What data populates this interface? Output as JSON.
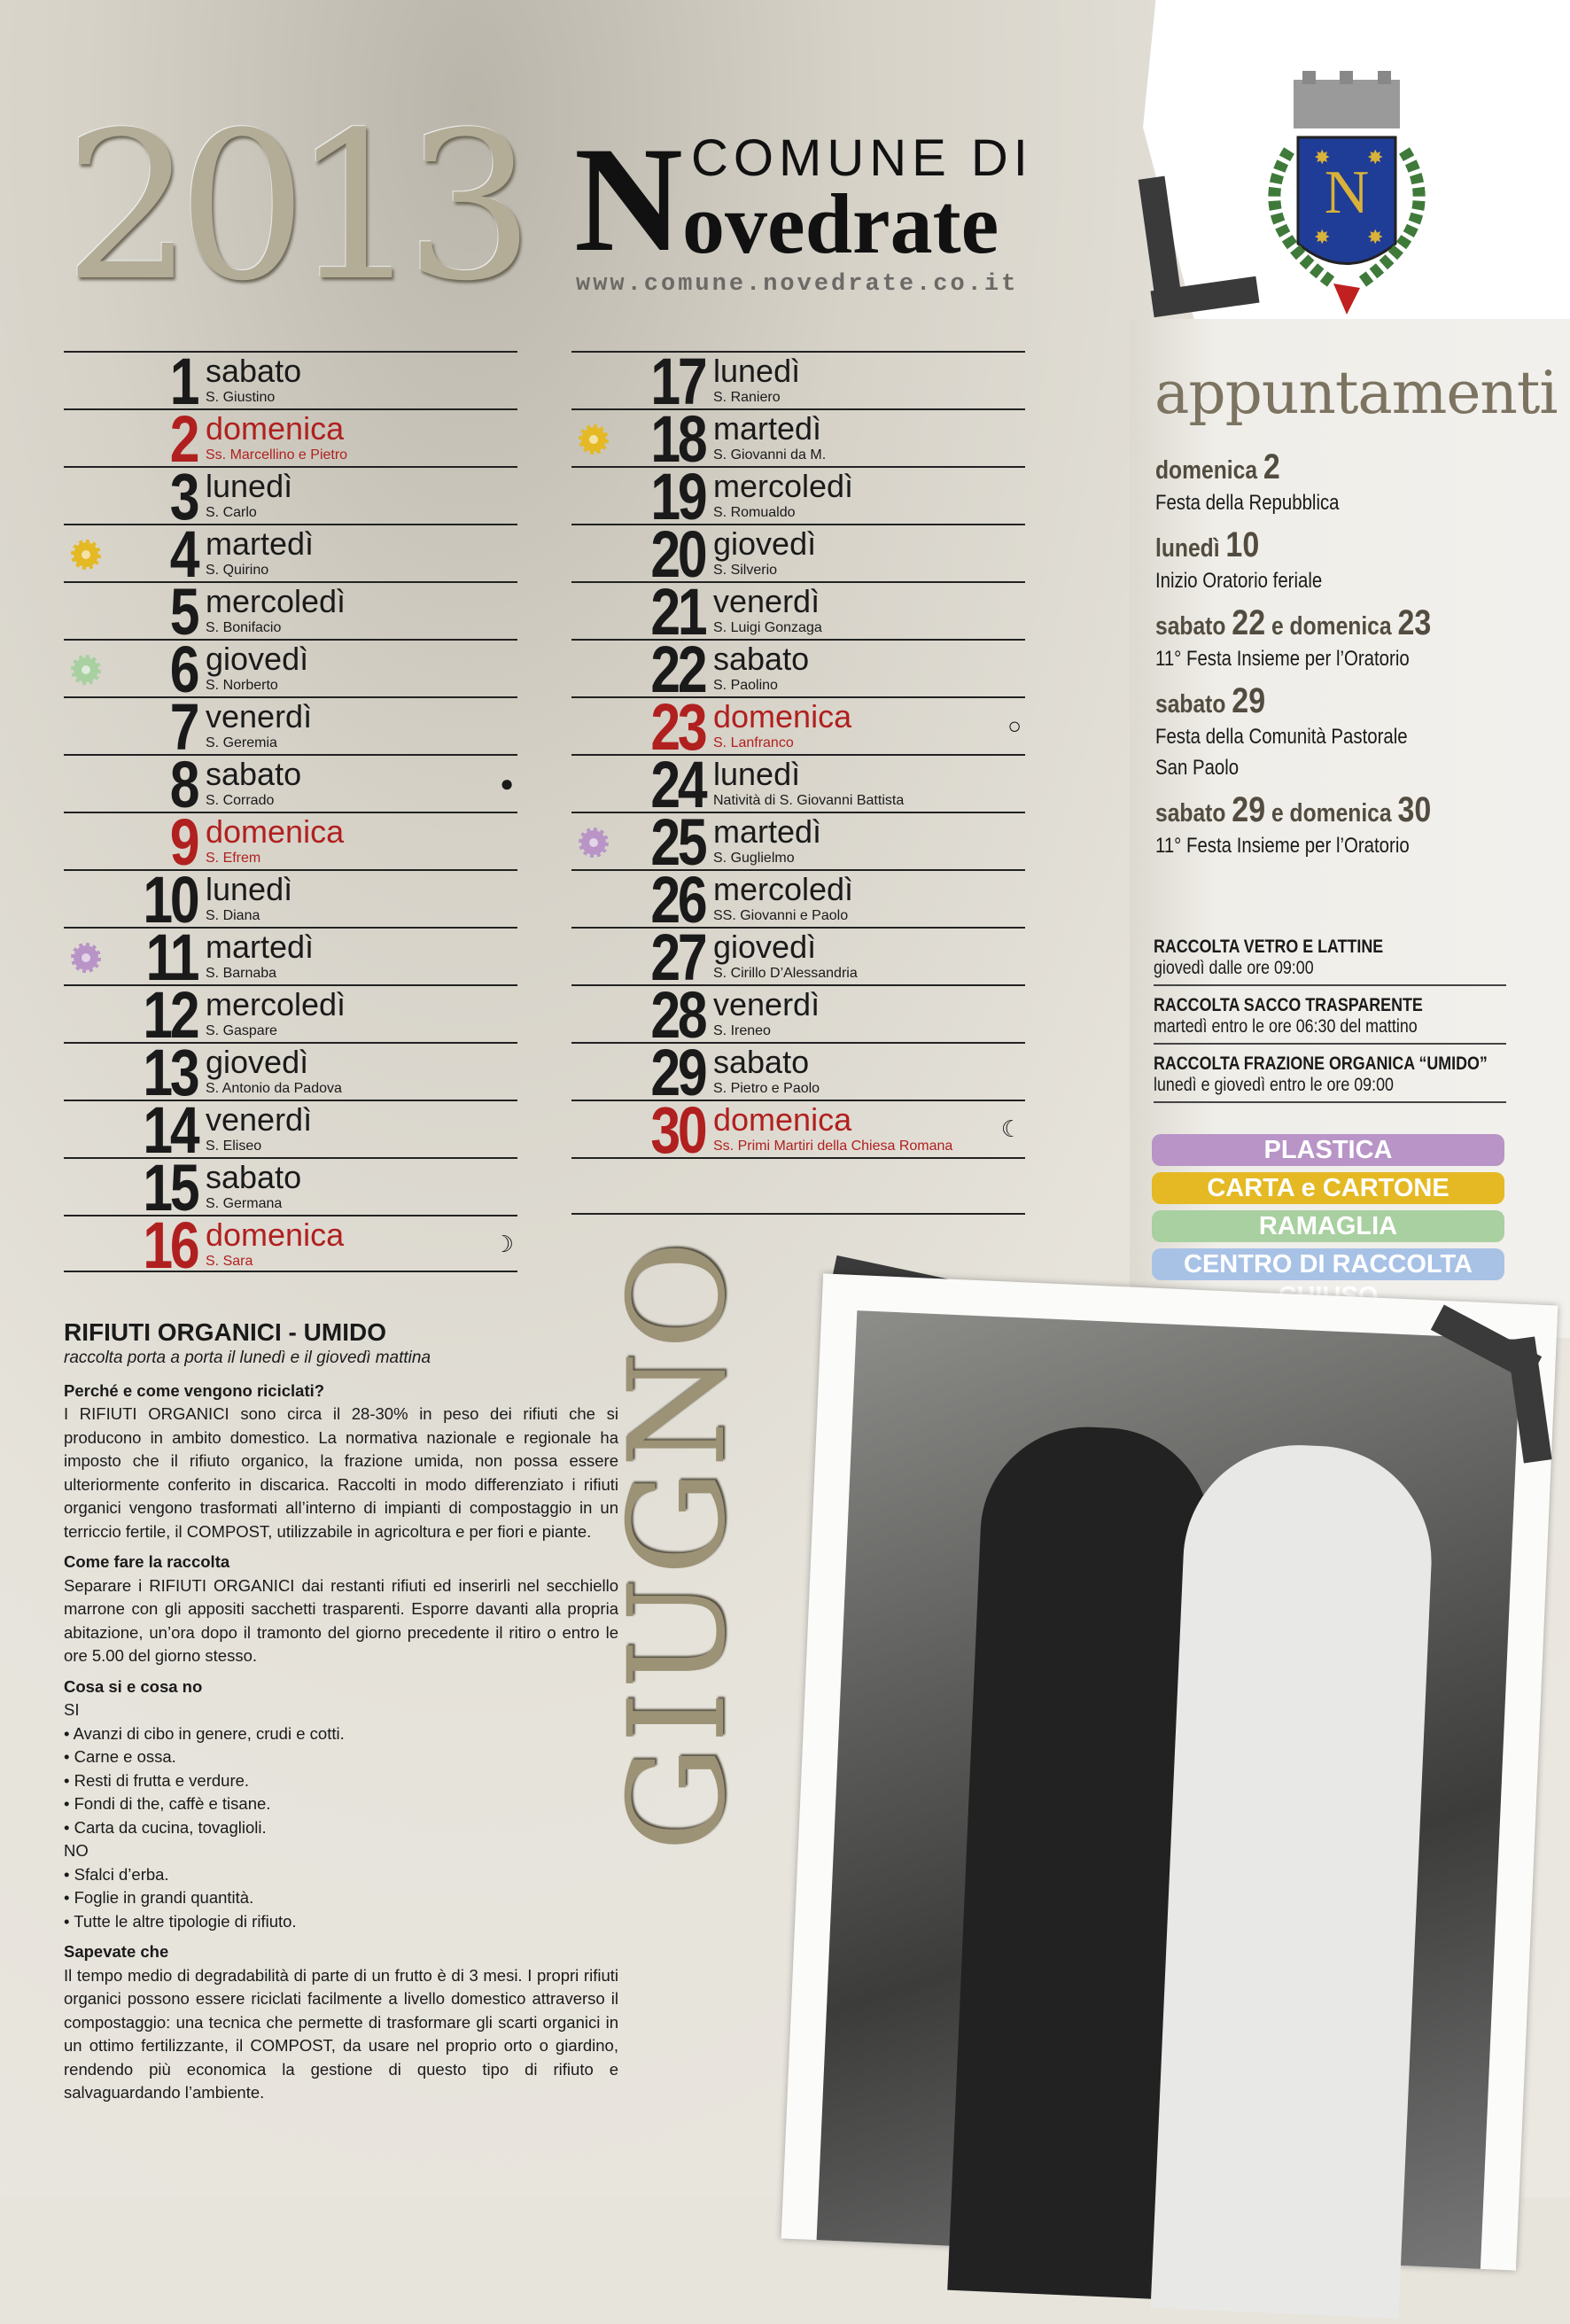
{
  "year": "2013",
  "header": {
    "n": "N",
    "comune": "COMUNE DI",
    "name": "ovedrate",
    "url": "www.comune.novedrate.co.it",
    "crest_letter": "N"
  },
  "month": "GIUGNO",
  "colors": {
    "plastica": "#b894c7",
    "carta": "#e4b923",
    "ramaglia": "#a8d0a0",
    "centro": "#a8c2e6",
    "sunday": "#b0201f"
  },
  "days_left": [
    {
      "n": "1",
      "d": "sabato",
      "s": "S. Giustino"
    },
    {
      "n": "2",
      "d": "domenica",
      "s": "Ss. Marcellino e Pietro",
      "sun": true
    },
    {
      "n": "3",
      "d": "lunedì",
      "s": "S. Carlo"
    },
    {
      "n": "4",
      "d": "martedì",
      "s": "S. Quirino",
      "flower": "carta"
    },
    {
      "n": "5",
      "d": "mercoledì",
      "s": "S. Bonifacio"
    },
    {
      "n": "6",
      "d": "giovedì",
      "s": "S. Norberto",
      "flower": "ramaglia"
    },
    {
      "n": "7",
      "d": "venerdì",
      "s": "S. Geremia"
    },
    {
      "n": "8",
      "d": "sabato",
      "s": "S. Corrado",
      "moon": "new-moon"
    },
    {
      "n": "9",
      "d": "domenica",
      "s": "S. Efrem",
      "sun": true
    },
    {
      "n": "10",
      "d": "lunedì",
      "s": "S. Diana"
    },
    {
      "n": "11",
      "d": "martedì",
      "s": "S. Barnaba",
      "flower": "plastica"
    },
    {
      "n": "12",
      "d": "mercoledì",
      "s": "S. Gaspare"
    },
    {
      "n": "13",
      "d": "giovedì",
      "s": "S. Antonio da Padova"
    },
    {
      "n": "14",
      "d": "venerdì",
      "s": "S. Eliseo"
    },
    {
      "n": "15",
      "d": "sabato",
      "s": "S. Germana"
    },
    {
      "n": "16",
      "d": "domenica",
      "s": "S. Sara",
      "sun": true,
      "moon": "first-quarter"
    }
  ],
  "days_right": [
    {
      "n": "17",
      "d": "lunedì",
      "s": "S. Raniero"
    },
    {
      "n": "18",
      "d": "martedì",
      "s": "S. Giovanni da M.",
      "flower": "carta"
    },
    {
      "n": "19",
      "d": "mercoledì",
      "s": "S. Romualdo"
    },
    {
      "n": "20",
      "d": "giovedì",
      "s": "S. Silverio"
    },
    {
      "n": "21",
      "d": "venerdì",
      "s": "S. Luigi Gonzaga"
    },
    {
      "n": "22",
      "d": "sabato",
      "s": "S. Paolino"
    },
    {
      "n": "23",
      "d": "domenica",
      "s": "S. Lanfranco",
      "sun": true,
      "moon": "full-moon"
    },
    {
      "n": "24",
      "d": "lunedì",
      "s": "Natività di S. Giovanni Battista"
    },
    {
      "n": "25",
      "d": "martedì",
      "s": "S. Guglielmo",
      "flower": "plastica"
    },
    {
      "n": "26",
      "d": "mercoledì",
      "s": "SS. Giovanni e Paolo"
    },
    {
      "n": "27",
      "d": "giovedì",
      "s": "S. Cirillo D’Alessandria"
    },
    {
      "n": "28",
      "d": "venerdì",
      "s": "S. Ireneo"
    },
    {
      "n": "29",
      "d": "sabato",
      "s": "S. Pietro e Paolo"
    },
    {
      "n": "30",
      "d": "domenica",
      "s": "Ss. Primi Martiri della Chiesa Romana",
      "sun": true,
      "moon": "last-quarter"
    }
  ],
  "appuntamenti": {
    "title": "appuntamenti",
    "events": [
      {
        "h1": "domenica ",
        "n1": "2",
        "h2": "",
        "n2": "",
        "d": "Festa della Repubblica"
      },
      {
        "h1": "lunedì ",
        "n1": "10",
        "h2": "",
        "n2": "",
        "d": "Inizio Oratorio feriale"
      },
      {
        "h1": "sabato ",
        "n1": "22",
        "h2": " e domenica ",
        "n2": "23",
        "d": "11° Festa Insieme per l’Oratorio"
      },
      {
        "h1": "sabato ",
        "n1": "29",
        "h2": "",
        "n2": "",
        "d": "Festa della Comunità Pastorale San Paolo"
      },
      {
        "h1": "sabato ",
        "n1": "29",
        "h2": " e domenica ",
        "n2": "30",
        "d": "11° Festa Insieme per l’Oratorio"
      }
    ]
  },
  "raccolta": [
    {
      "t": "RACCOLTA VETRO E LATTINE",
      "d": "giovedì dalle ore 09:00"
    },
    {
      "t": "RACCOLTA SACCO TRASPARENTE",
      "d": "martedì entro le ore 06:30 del mattino"
    },
    {
      "t": "RACCOLTA FRAZIONE ORGANICA “UMIDO”",
      "d": "lunedì e giovedì entro le ore 09:00"
    }
  ],
  "legend": [
    "PLASTICA",
    "CARTA e CARTONE",
    "RAMAGLIA",
    "CENTRO DI RACCOLTA CHIUSO"
  ],
  "info": {
    "title": "RIFIUTI ORGANICI - UMIDO",
    "subtitle": "raccolta porta a porta il lunedì e il giovedì mattina",
    "h1": "Perché e come vengono riciclati?",
    "p1": "I RIFIUTI ORGANICI sono circa il 28-30% in peso dei rifiuti che si producono in ambito domestico. La normativa nazionale e regionale ha imposto che il rifiuto organico, la frazione umida, non possa essere ulteriormente conferito in discarica. Raccolti in modo differenziato i rifiuti organici vengono trasformati all’interno di impianti di compostaggio in un terriccio fertile, il COMPOST, utilizzabile in agricoltura e per fiori e piante.",
    "h2": "Come fare la raccolta",
    "p2": "Separare i RIFIUTI ORGANICI dai restanti rifiuti ed inserirli nel secchiello marrone con gli appositi sacchetti trasparenti. Esporre davanti alla propria abitazione, un’ora dopo il tramonto del giorno precedente il ritiro o entro le ore 5.00 del giorno stesso.",
    "h3": "Cosa si e cosa no",
    "si": "SI",
    "si_items": [
      "Avanzi di cibo in genere, crudi e cotti.",
      "Carne e ossa.",
      "Resti di frutta e verdure.",
      "Fondi di the, caffè e tisane.",
      "Carta da cucina, tovaglioli."
    ],
    "no": "NO",
    "no_items": [
      "Sfalci d’erba.",
      "Foglie in grandi quantità.",
      "Tutte le altre tipologie di rifiuto."
    ],
    "h4": "Sapevate che",
    "p4": "Il tempo medio di degradabilità di parte di un frutto è di 3 mesi. I propri rifiuti organici possono essere riciclati facilmente a livello domestico attraverso il compostaggio: una tecnica che permette di trasformare gli scarti organici in un ottimo fertilizzante, il COMPOST, da usare nel proprio orto o giardino, rendendo più economica la gestione di questo tipo di rifiuto e salvaguardando l’ambiente."
  }
}
